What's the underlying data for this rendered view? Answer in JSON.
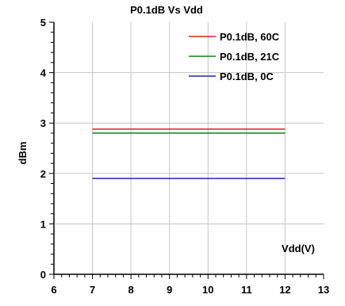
{
  "chart_data": {
    "type": "line",
    "title": "P0.1dB Vs Vdd",
    "xlabel": "Vdd(V)",
    "ylabel": "dBm",
    "xlim": [
      6,
      13
    ],
    "ylim": [
      0,
      5
    ],
    "x_ticks": [
      6,
      7,
      8,
      9,
      10,
      11,
      12,
      13
    ],
    "y_ticks": [
      0,
      1,
      2,
      3,
      4,
      5
    ],
    "grid": true,
    "legend_position": "top-right",
    "series": [
      {
        "name": "P0.1dB, 60C",
        "color": "#d42020",
        "x": [
          7,
          12
        ],
        "y": [
          2.88,
          2.88
        ]
      },
      {
        "name": "P0.1dB, 21C",
        "color": "#1a7a1a",
        "x": [
          7,
          12
        ],
        "y": [
          2.8,
          2.8
        ]
      },
      {
        "name": "P0.1dB, 0C",
        "color": "#2424b8",
        "x": [
          7,
          12
        ],
        "y": [
          1.9,
          1.9
        ]
      }
    ]
  }
}
